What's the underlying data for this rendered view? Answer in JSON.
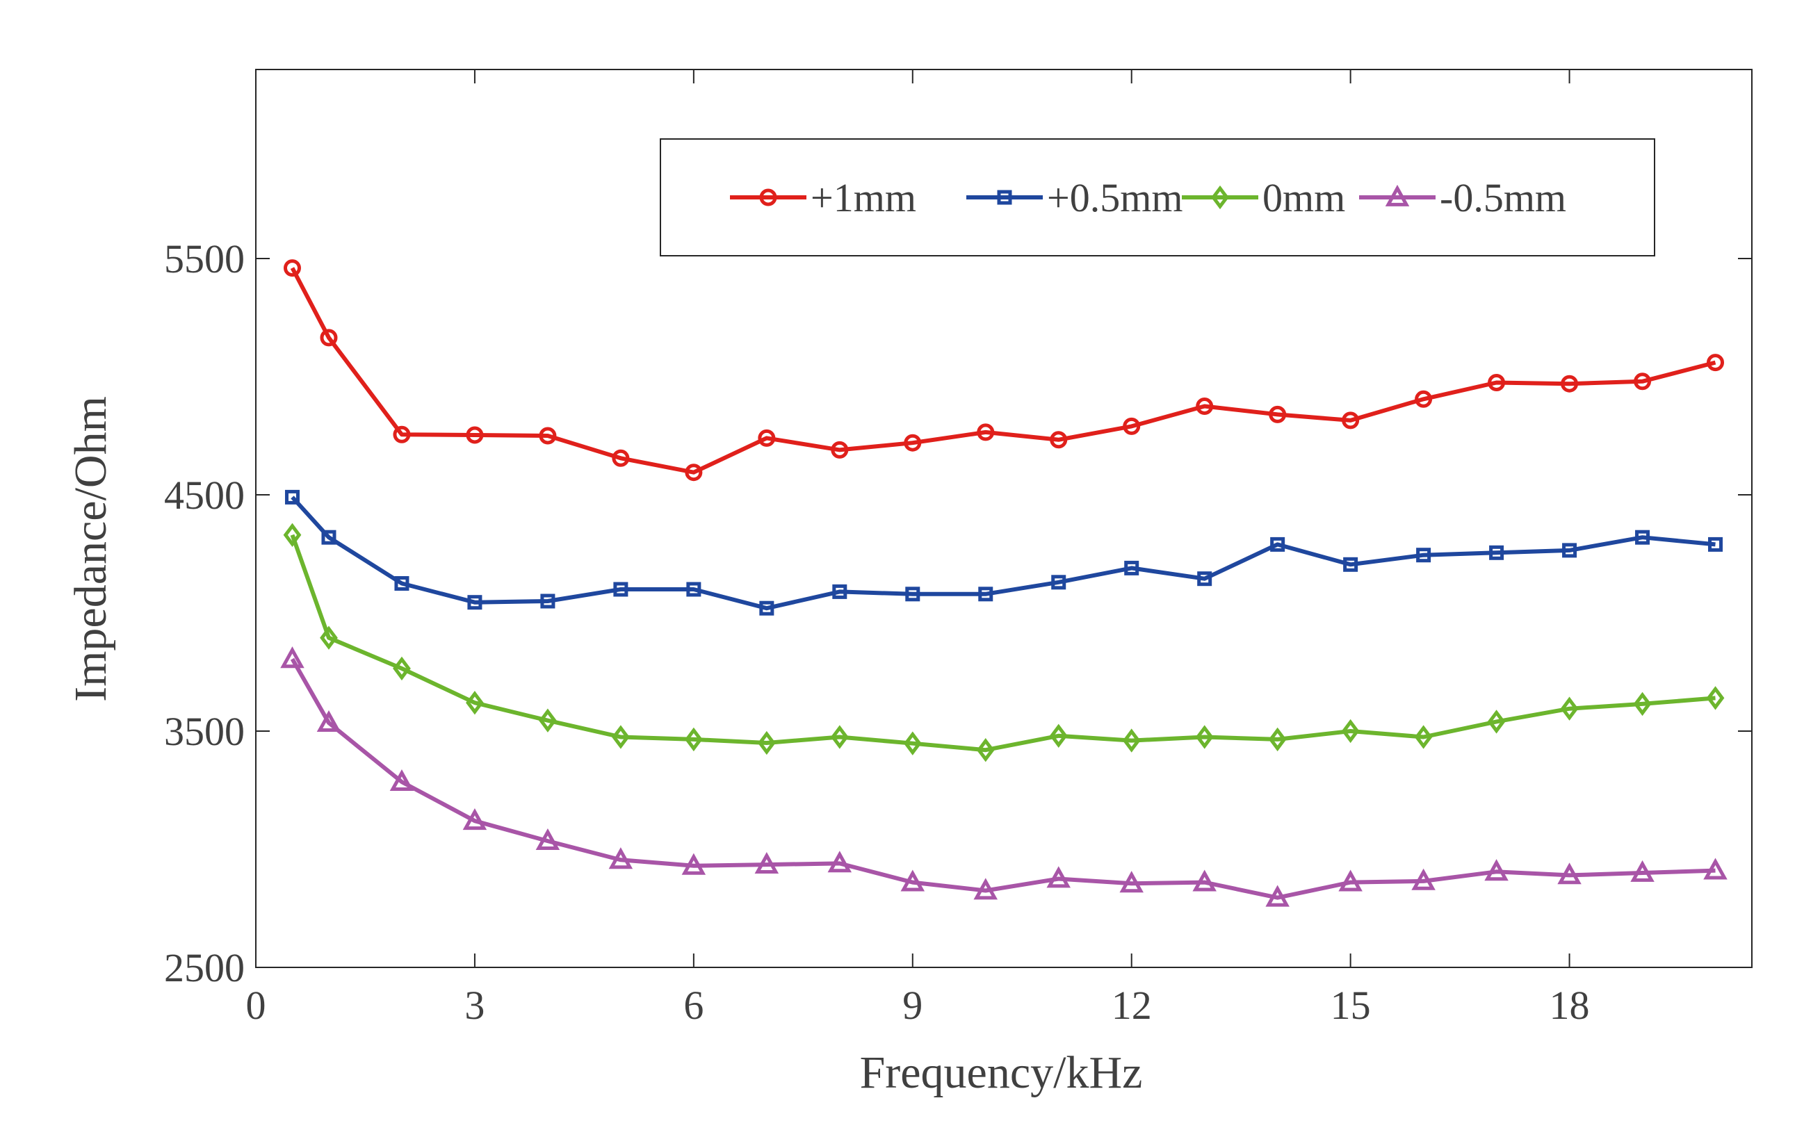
{
  "chart_data": {
    "type": "line",
    "xlabel": "Frequency/kHz",
    "ylabel": "Impedance/Ohm",
    "xlim": [
      0,
      20.5
    ],
    "ylim": [
      2500,
      6300
    ],
    "xticks": [
      0,
      3,
      6,
      9,
      12,
      15,
      18
    ],
    "yticks": [
      2500,
      3500,
      4500,
      5500
    ],
    "grid": false,
    "legend_position": "top-right",
    "x": [
      0.5,
      1,
      2,
      3,
      4,
      5,
      6,
      7,
      8,
      9,
      10,
      11,
      12,
      13,
      14,
      15,
      16,
      17,
      18,
      19,
      20
    ],
    "series": [
      {
        "name": "+1mm",
        "color": "#e0201b",
        "marker": "circle",
        "values": [
          5460,
          5165,
          4755,
          4753,
          4750,
          4655,
          4595,
          4740,
          4690,
          4720,
          4765,
          4733,
          4790,
          4875,
          4840,
          4815,
          4905,
          4975,
          4970,
          4980,
          5060
        ]
      },
      {
        "name": "+0.5mm",
        "color": "#1f479e",
        "marker": "square",
        "values": [
          4490,
          4320,
          4125,
          4045,
          4050,
          4100,
          4100,
          4020,
          4090,
          4080,
          4080,
          4130,
          4190,
          4145,
          4290,
          4205,
          4245,
          4255,
          4265,
          4320,
          4290
        ]
      },
      {
        "name": "0mm",
        "color": "#6cb52d",
        "marker": "diamond",
        "values": [
          4330,
          3895,
          3765,
          3620,
          3545,
          3475,
          3465,
          3450,
          3475,
          3448,
          3420,
          3480,
          3460,
          3475,
          3465,
          3500,
          3475,
          3540,
          3595,
          3615,
          3640
        ]
      },
      {
        "name": "-0.5mm",
        "color": "#a855a7",
        "marker": "triangle",
        "values": [
          3805,
          3535,
          3285,
          3120,
          3035,
          2955,
          2930,
          2935,
          2940,
          2860,
          2825,
          2875,
          2855,
          2860,
          2795,
          2860,
          2865,
          2905,
          2890,
          2900,
          2910
        ]
      }
    ]
  }
}
